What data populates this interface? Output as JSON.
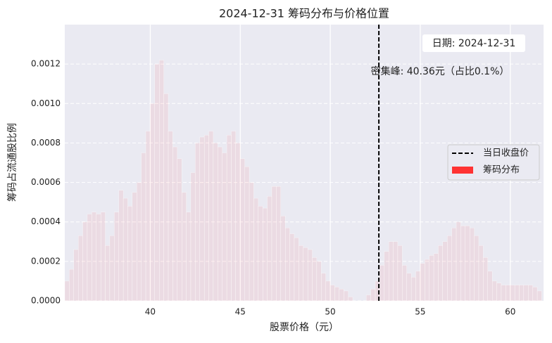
{
  "chart_data": {
    "type": "histogram",
    "title": "2024-12-31 筹码分布与价格位置",
    "x_label": "股票价格（元）",
    "y_label": "筹码占流通股比例",
    "bins": [
      35.25,
      35.5,
      35.75,
      36,
      36.25,
      36.5,
      36.75,
      37,
      37.25,
      37.5,
      37.75,
      38,
      38.25,
      38.5,
      38.75,
      39,
      39.25,
      39.5,
      39.75,
      40,
      40.25,
      40.5,
      40.75,
      41,
      41.25,
      41.5,
      41.75,
      42,
      42.25,
      42.5,
      42.75,
      43,
      43.25,
      43.5,
      43.75,
      44,
      44.25,
      44.5,
      44.75,
      45,
      45.25,
      45.5,
      45.75,
      46,
      46.25,
      46.5,
      46.75,
      47,
      47.25,
      47.5,
      47.75,
      48,
      48.25,
      48.5,
      48.75,
      49,
      49.25,
      49.5,
      49.75,
      50,
      50.25,
      50.5,
      50.75,
      51,
      51.25,
      51.5,
      51.75,
      52,
      52.25,
      52.5,
      52.75,
      53,
      53.25,
      53.5,
      53.75,
      54,
      54.25,
      54.5,
      54.75,
      55,
      55.25,
      55.5,
      55.75,
      56,
      56.25,
      56.5,
      56.75,
      57,
      57.25,
      57.5,
      57.75,
      58,
      58.25,
      58.5,
      58.75,
      59,
      59.25,
      59.5,
      59.75,
      60,
      60.25,
      60.5,
      60.75,
      61,
      61.25,
      61.5,
      61.75
    ],
    "counts": [
      0.0001,
      0.00016,
      0.00026,
      0.00033,
      0.0004,
      0.00044,
      0.00045,
      0.00044,
      0.00045,
      0.00028,
      0.00033,
      0.00045,
      0.00056,
      0.00052,
      0.00048,
      0.00055,
      0.0006,
      0.00075,
      0.00086,
      0.001,
      0.0012,
      0.00122,
      0.00105,
      0.00086,
      0.00078,
      0.00072,
      0.00055,
      0.00045,
      0.00065,
      0.0008,
      0.00083,
      0.00084,
      0.00086,
      0.0008,
      0.00078,
      0.00075,
      0.00084,
      0.00086,
      0.0008,
      0.00072,
      0.00068,
      0.0006,
      0.00052,
      0.00048,
      0.00047,
      0.00053,
      0.00058,
      0.00058,
      0.00043,
      0.00037,
      0.00034,
      0.00032,
      0.00028,
      0.00027,
      0.00026,
      0.00022,
      0.0002,
      0.00014,
      0.0001,
      8e-05,
      7e-05,
      6e-05,
      5e-05,
      2e-05,
      0,
      0,
      0,
      3e-05,
      6e-05,
      0.0001,
      0.00018,
      0.00025,
      0.0003,
      0.0003,
      0.00028,
      0.00018,
      0.00014,
      0.00012,
      0.00015,
      0.00019,
      0.00021,
      0.00023,
      0.00024,
      0.00028,
      0.0003,
      0.00033,
      0.00037,
      0.0004,
      0.00038,
      0.00038,
      0.00037,
      0.00033,
      0.00028,
      0.00022,
      0.00015,
      0.0001,
      9e-05,
      8e-05,
      8e-05,
      8e-05,
      8e-05,
      8e-05,
      8e-05,
      8e-05,
      7e-05,
      5e-05
    ],
    "bar_name": "筹码分布",
    "color": "#ff3333",
    "vline": {
      "name": "当日收盘价",
      "x": 52.7,
      "color": "#000000"
    },
    "annotations": [
      {
        "text": "日期: 2024-12-31"
      },
      {
        "text": "密集峰: 40.36元（占比0.1%）"
      }
    ],
    "xlim": [
      35.25,
      61.85
    ],
    "ylim": [
      0,
      0.0014
    ],
    "xticks": [
      40,
      45,
      50,
      55,
      60
    ],
    "yticks": [
      {
        "value": 0,
        "label": "0.0000"
      },
      {
        "value": 0.0002,
        "label": "0.0002"
      },
      {
        "value": 0.0004,
        "label": "0.0004"
      },
      {
        "value": 0.0006,
        "label": "0.0006"
      },
      {
        "value": 0.0008,
        "label": "0.0008"
      },
      {
        "value": 0.001,
        "label": "0.0010"
      },
      {
        "value": 0.0012,
        "label": "0.0012"
      }
    ],
    "grid": true,
    "legend_loc": "center right"
  }
}
